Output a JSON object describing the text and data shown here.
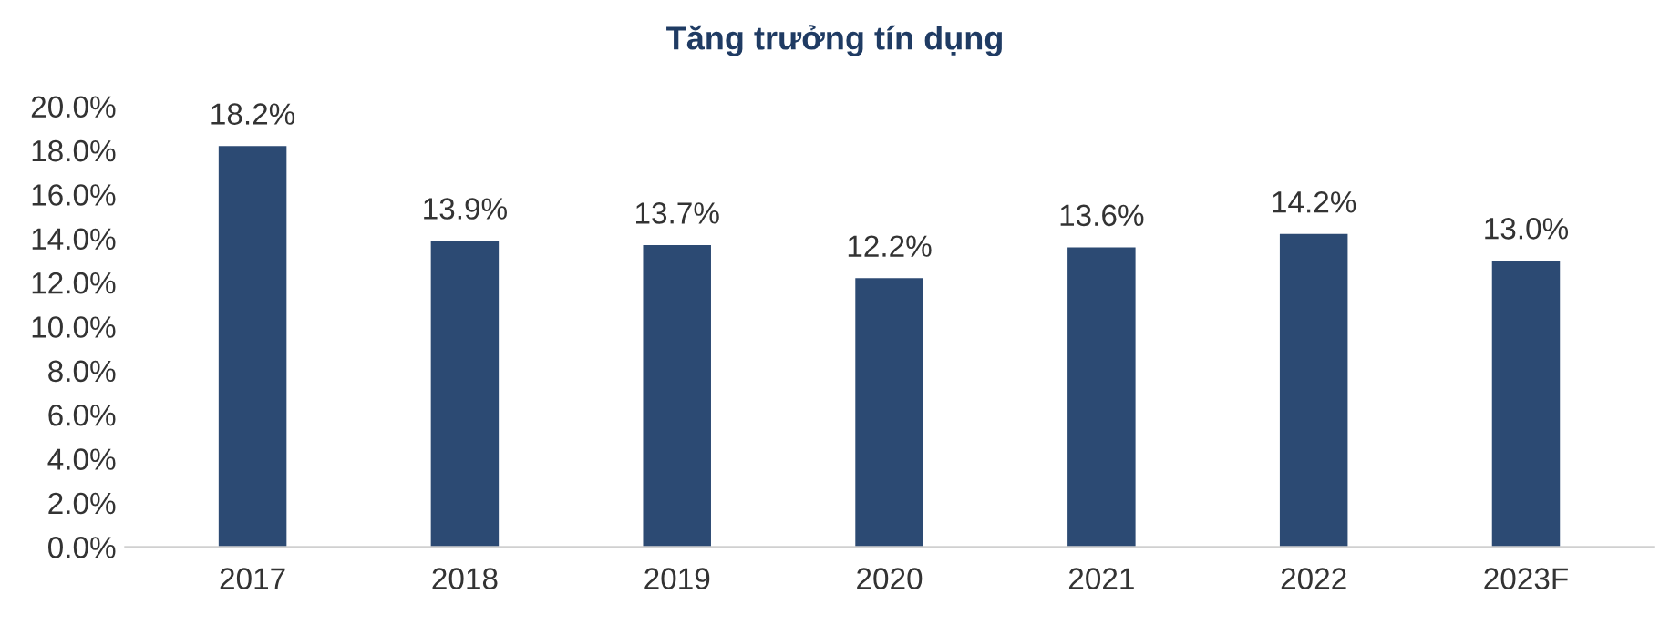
{
  "chart_data": {
    "type": "bar",
    "title": "Tăng trưởng tín dụng",
    "categories": [
      "2017",
      "2018",
      "2019",
      "2020",
      "2021",
      "2022",
      "2023F"
    ],
    "values": [
      18.2,
      13.9,
      13.7,
      12.2,
      13.6,
      14.2,
      13.0
    ],
    "value_labels": [
      "18.2%",
      "13.9%",
      "13.7%",
      "12.2%",
      "13.6%",
      "14.2%",
      "13.0%"
    ],
    "color": "#2c4a73",
    "ylim": [
      0,
      20
    ],
    "yticks": [
      {
        "value": 0,
        "label": "0.0%"
      },
      {
        "value": 2,
        "label": "2.0%"
      },
      {
        "value": 4,
        "label": "4.0%"
      },
      {
        "value": 6,
        "label": "6.0%"
      },
      {
        "value": 8,
        "label": "8.0%"
      },
      {
        "value": 10,
        "label": "10.0%"
      },
      {
        "value": 12,
        "label": "12.0%"
      },
      {
        "value": 14,
        "label": "14.0%"
      },
      {
        "value": 16,
        "label": "16.0%"
      },
      {
        "value": 18,
        "label": "18.0%"
      },
      {
        "value": 20,
        "label": "20.0%"
      }
    ],
    "grid": false
  }
}
